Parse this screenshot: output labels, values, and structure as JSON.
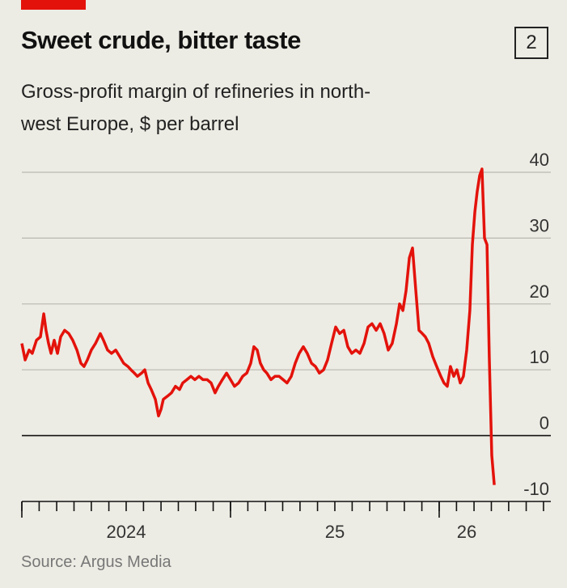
{
  "chart_data": {
    "type": "line",
    "title": "Sweet crude, bitter taste",
    "chart_number": "2",
    "subtitle": "Gross-profit margin of refineries in north-west Europe, $ per barrel",
    "source": "Source: Argus Media",
    "x": [
      2024.0,
      2024.016,
      2024.035,
      2024.05,
      2024.07,
      2024.089,
      2024.105,
      2024.116,
      2024.128,
      2024.14,
      2024.155,
      2024.171,
      2024.186,
      2024.205,
      2024.225,
      2024.244,
      2024.264,
      2024.283,
      2024.298,
      2024.314,
      2024.333,
      2024.353,
      2024.376,
      2024.391,
      2024.411,
      2024.43,
      2024.45,
      2024.469,
      2024.488,
      2024.508,
      2024.523,
      2024.539,
      2024.554,
      2024.574,
      2024.589,
      2024.605,
      2024.62,
      2024.64,
      2024.655,
      2024.667,
      2024.678,
      2024.698,
      2024.717,
      2024.736,
      2024.756,
      2024.771,
      2024.791,
      2024.81,
      2024.829,
      2024.849,
      2024.868,
      2024.888,
      2024.907,
      2024.926,
      2024.942,
      2024.961,
      2024.981,
      2025.0,
      2025.019,
      2025.039,
      2025.058,
      2025.078,
      2025.097,
      2025.112,
      2025.128,
      2025.143,
      2025.159,
      2025.174,
      2025.194,
      2025.213,
      2025.233,
      2025.252,
      2025.271,
      2025.291,
      2025.31,
      2025.329,
      2025.349,
      2025.368,
      2025.388,
      2025.407,
      2025.426,
      2025.446,
      2025.465,
      2025.484,
      2025.504,
      2025.523,
      2025.543,
      2025.562,
      2025.581,
      2025.601,
      2025.62,
      2025.64,
      2025.659,
      2025.678,
      2025.698,
      2025.717,
      2025.736,
      2025.756,
      2025.775,
      2025.795,
      2025.81,
      2025.826,
      2025.841,
      2025.857,
      2025.872,
      2025.888,
      2025.903,
      2025.919,
      2025.934,
      2025.95,
      2025.969,
      2025.988,
      2026.008,
      2026.023,
      2026.039,
      2026.054,
      2026.07,
      2026.085,
      2026.101,
      2026.116,
      2026.132,
      2026.147,
      2026.159,
      2026.171,
      2026.182,
      2026.194,
      2026.205,
      2026.217,
      2026.229,
      2026.24,
      2026.252,
      2026.264
    ],
    "series": [
      {
        "color": "#e3120b",
        "values": [
          14,
          11.5,
          13,
          12.5,
          14.5,
          15,
          18.5,
          16,
          14,
          12.5,
          14.5,
          12.5,
          15,
          16,
          15.5,
          14.5,
          13,
          11,
          10.5,
          11.5,
          13,
          14,
          15.5,
          14.5,
          13,
          12.5,
          13,
          12,
          11,
          10.5,
          10,
          9.5,
          9,
          9.5,
          10,
          8,
          7,
          5.5,
          3,
          4,
          5.5,
          6,
          6.5,
          7.5,
          7,
          8,
          8.5,
          9,
          8.5,
          9,
          8.5,
          8.5,
          8,
          6.5,
          7.5,
          8.5,
          9.5,
          8.5,
          7.5,
          8,
          9,
          9.5,
          11,
          13.5,
          13,
          11,
          10,
          9.5,
          8.5,
          9,
          9,
          8.5,
          8,
          9,
          11,
          12.5,
          13.5,
          12.5,
          11,
          10.5,
          9.5,
          10,
          11.5,
          14,
          16.5,
          15.5,
          16,
          13.5,
          12.5,
          13,
          12.5,
          14,
          16.5,
          17,
          16,
          17,
          15.5,
          13,
          14,
          17,
          20,
          19,
          22,
          27,
          28.5,
          22,
          16,
          15.5,
          15,
          14,
          12,
          10.5,
          9,
          8,
          7.5,
          10.5,
          9,
          10,
          8,
          9,
          13,
          19,
          29,
          34,
          37,
          39.5,
          40.5,
          30,
          29,
          12,
          -3,
          -7.5
        ]
      }
    ],
    "xlim": [
      2024,
      2026.535
    ],
    "xticks": [
      {
        "value": 2024,
        "label": "2024"
      },
      {
        "value": 2025,
        "label": "25"
      },
      {
        "value": 2026,
        "label": "26"
      }
    ],
    "x_minor_ticks": [
      2024,
      2024.083,
      2024.167,
      2024.25,
      2024.333,
      2024.417,
      2024.5,
      2024.583,
      2024.667,
      2024.75,
      2024.833,
      2024.917,
      2025,
      2025.083,
      2025.167,
      2025.25,
      2025.333,
      2025.417,
      2025.5,
      2025.583,
      2025.667,
      2025.75,
      2025.833,
      2025.917,
      2026,
      2026.083,
      2026.167,
      2026.25,
      2026.333,
      2026.417,
      2026.5
    ],
    "ylim": [
      -10,
      40
    ],
    "yticks": [
      -10,
      0,
      10,
      20,
      30,
      40
    ],
    "grid": true
  }
}
